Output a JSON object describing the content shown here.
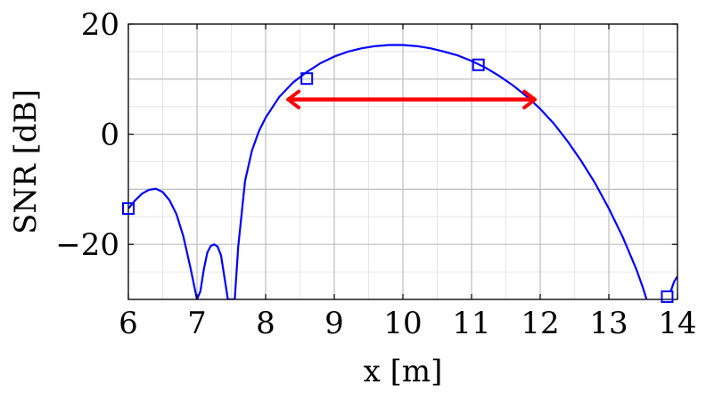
{
  "chart_data": {
    "type": "line",
    "title": "",
    "xlabel": "x [m]",
    "ylabel": "SNR [dB]",
    "xlim": [
      6,
      14
    ],
    "ylim": [
      -30,
      20
    ],
    "x_ticks": [
      6,
      7,
      8,
      9,
      10,
      11,
      12,
      13,
      14
    ],
    "x_tick_labels": [
      "6",
      "7",
      "8",
      "9",
      "10",
      "11",
      "12",
      "13",
      "14"
    ],
    "y_ticks": [
      -20,
      0,
      20
    ],
    "y_tick_labels": [
      "−20",
      "0",
      "20"
    ],
    "grid": true,
    "minor_grid": true,
    "series": [
      {
        "color": "#0000ff",
        "marker": "none",
        "x": [
          6.0,
          6.1,
          6.2,
          6.3,
          6.4,
          6.5,
          6.6,
          6.7,
          6.8,
          6.9,
          7.0,
          7.05,
          7.1,
          7.15,
          7.2,
          7.25,
          7.3,
          7.35,
          7.4,
          7.45,
          7.5,
          7.55,
          7.6,
          7.7,
          7.8,
          7.9,
          8.0,
          8.2,
          8.4,
          8.6,
          8.8,
          9.0,
          9.2,
          9.4,
          9.6,
          9.8,
          10.0,
          10.2,
          10.4,
          10.6,
          10.8,
          11.0,
          11.2,
          11.4,
          11.6,
          11.8,
          12.0,
          12.2,
          12.4,
          12.6,
          12.8,
          13.0,
          13.2,
          13.4,
          13.5,
          13.55
        ],
        "y": [
          -13.5,
          -12.0,
          -10.8,
          -10.1,
          -9.9,
          -10.5,
          -12.0,
          -14.5,
          -18.5,
          -24.0,
          -30.0,
          -28.5,
          -24.5,
          -21.5,
          -20.3,
          -20.0,
          -20.4,
          -22.0,
          -26.0,
          -30.0,
          -30.0,
          -30.0,
          -20.5,
          -8.5,
          -3.0,
          0.5,
          3.0,
          6.8,
          9.4,
          11.3,
          12.9,
          14.1,
          15.0,
          15.6,
          16.0,
          16.2,
          16.2,
          16.0,
          15.6,
          15.0,
          14.3,
          13.3,
          12.1,
          10.6,
          8.9,
          6.9,
          4.6,
          1.9,
          -1.3,
          -4.9,
          -8.9,
          -13.5,
          -18.6,
          -24.5,
          -28.0,
          -30.0
        ]
      },
      {
        "color": "#0000ff",
        "marker": "none",
        "x": [
          13.9,
          13.95,
          14.0
        ],
        "y": [
          -28.6,
          -26.8,
          -25.8
        ]
      },
      {
        "color": "#0000ff",
        "marker": "square",
        "line": "none",
        "x": [
          6.0,
          8.6,
          11.1,
          13.85
        ],
        "y": [
          -13.5,
          10.1,
          12.6,
          -29.5
        ]
      }
    ],
    "annotations": [
      {
        "type": "double-arrow",
        "color": "#ff0000",
        "x_start": 8.3,
        "x_end": 11.95,
        "y": 6.3
      }
    ]
  }
}
